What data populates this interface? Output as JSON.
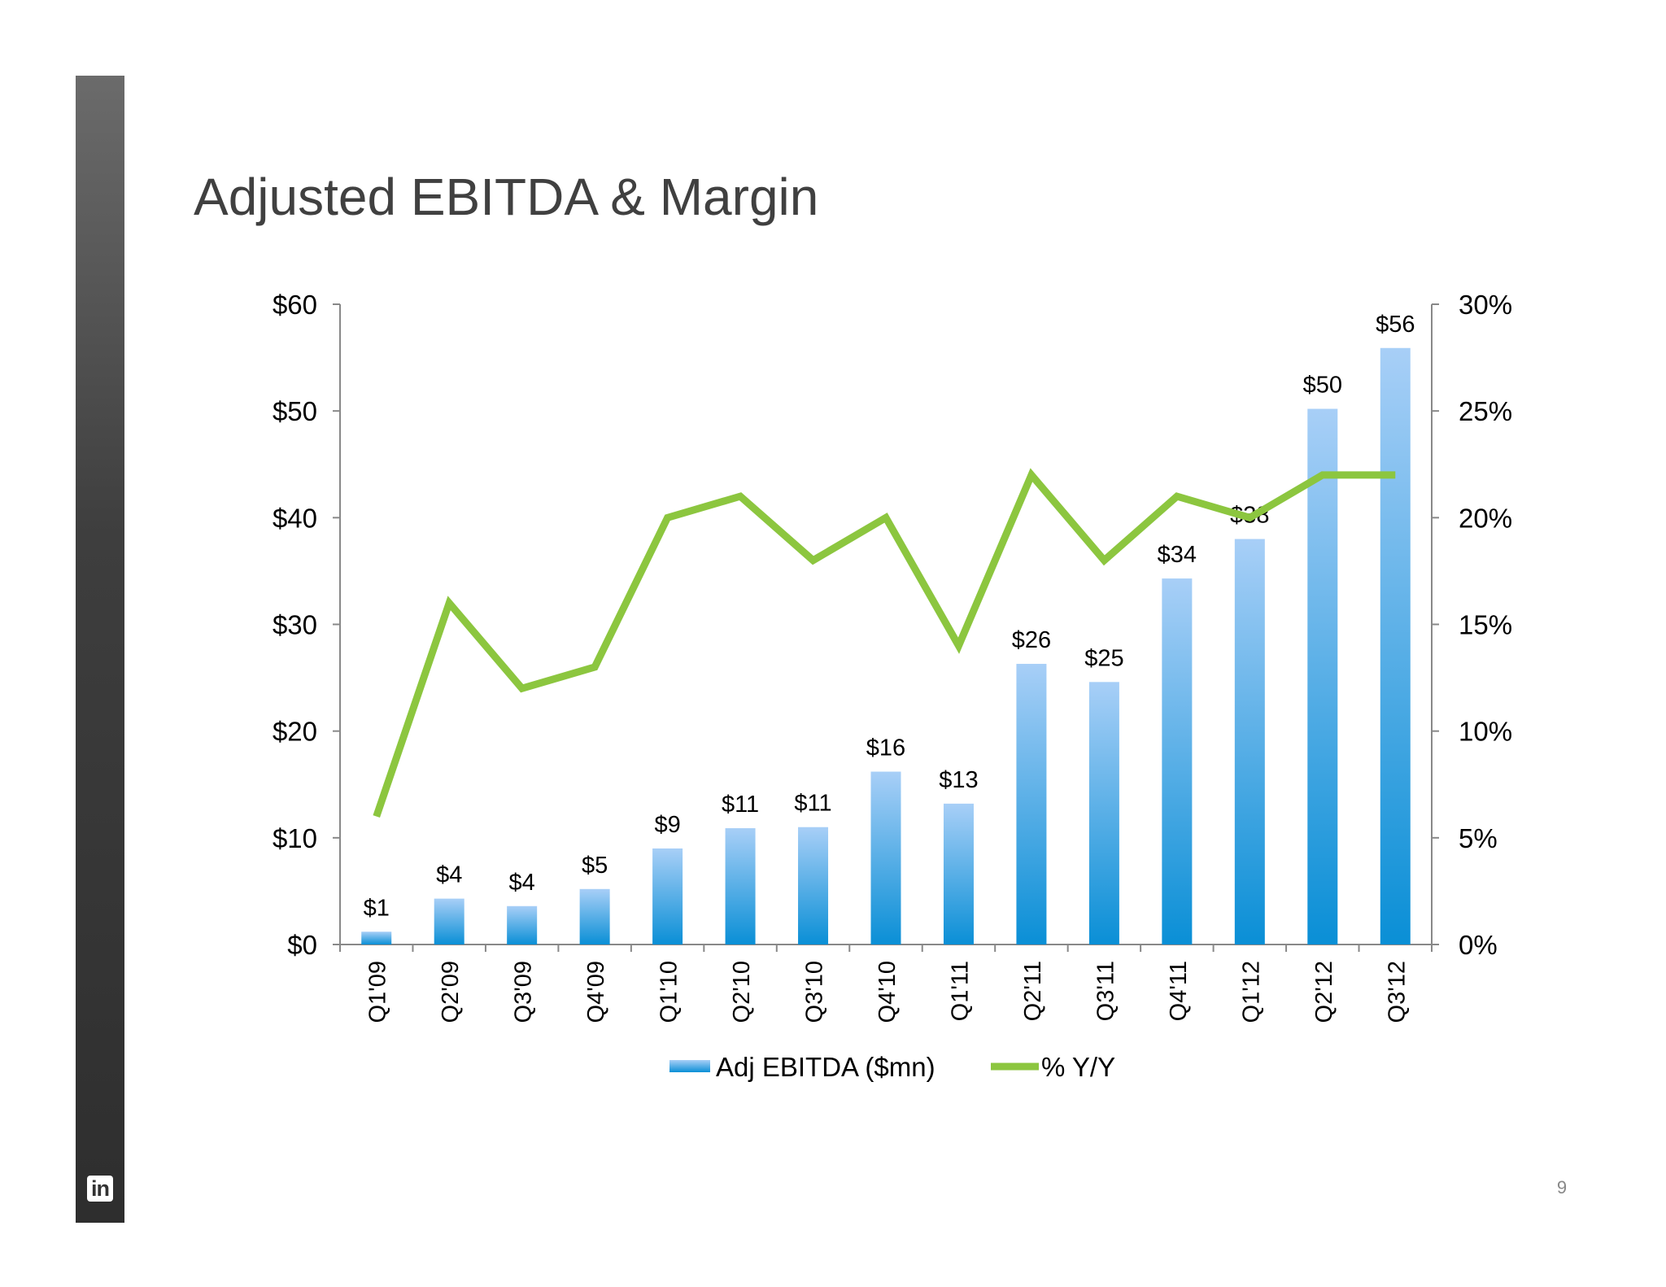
{
  "slide": {
    "title": "Adjusted EBITDA & Margin",
    "page_number": "9",
    "logo_text": "in",
    "logo_icon": "linkedin-icon"
  },
  "colors": {
    "bar_top": "#a8cff7",
    "bar_bottom": "#0a8fd6",
    "line": "#8cc63f",
    "axis": "#888888",
    "text": "#000000"
  },
  "chart_data": {
    "type": "bar",
    "title": "",
    "categories": [
      "Q1'09",
      "Q2'09",
      "Q3'09",
      "Q4'09",
      "Q1'10",
      "Q2'10",
      "Q3'10",
      "Q4'10",
      "Q1'11",
      "Q2'11",
      "Q3'11",
      "Q4'11",
      "Q1'12",
      "Q2'12",
      "Q3'12"
    ],
    "series": [
      {
        "name": "Adj EBITDA ($mn)",
        "type": "bar",
        "axis": "left",
        "values": [
          1.2,
          4.3,
          3.6,
          5.2,
          9.0,
          10.9,
          11.0,
          16.2,
          13.2,
          26.3,
          24.6,
          34.3,
          38.0,
          50.2,
          55.9
        ],
        "labels": [
          "$1",
          "$4",
          "$4",
          "$5",
          "$9",
          "$11",
          "$11",
          "$16",
          "$13",
          "$26",
          "$25",
          "$34",
          "$38",
          "$50",
          "$56"
        ]
      },
      {
        "name": "% Y/Y",
        "type": "line",
        "axis": "right",
        "values": [
          6,
          16,
          12,
          13,
          20,
          21,
          18,
          20,
          14,
          22,
          18,
          21,
          20,
          22,
          22
        ]
      }
    ],
    "y_left": {
      "min": 0,
      "max": 60,
      "ticks": [
        0,
        10,
        20,
        30,
        40,
        50,
        60
      ],
      "tick_labels": [
        "$0",
        "$10",
        "$20",
        "$30",
        "$40",
        "$50",
        "$60"
      ]
    },
    "y_right": {
      "min": 0,
      "max": 30,
      "ticks": [
        0,
        5,
        10,
        15,
        20,
        25,
        30
      ],
      "tick_labels": [
        "0%",
        "5%",
        "10%",
        "15%",
        "20%",
        "25%",
        "30%"
      ]
    },
    "legend": {
      "position": "bottom"
    },
    "grid": false
  }
}
